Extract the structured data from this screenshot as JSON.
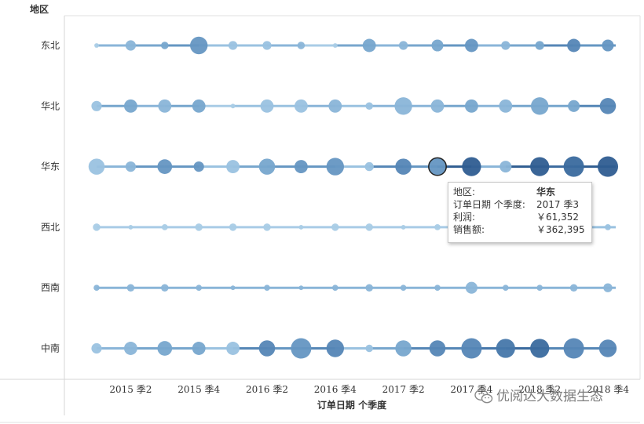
{
  "chart_data": {
    "type": "scatter",
    "title": "",
    "row_header": "地区",
    "xlabel": "订单日期 个季度",
    "x_ticks": [
      "2015 季2",
      "2015 季4",
      "2016 季2",
      "2016 季4",
      "2017 季2",
      "2017 季4",
      "2018 季2",
      "2018 季4"
    ],
    "quarters": [
      "2015 季1",
      "2015 季2",
      "2015 季3",
      "2015 季4",
      "2016 季1",
      "2016 季2",
      "2016 季3",
      "2016 季4",
      "2017 季1",
      "2017 季2",
      "2017 季3",
      "2017 季4",
      "2018 季1",
      "2018 季2",
      "2018 季3",
      "2018 季4"
    ],
    "size_measure": "销售额",
    "color_measure": "利润",
    "series": [
      {
        "name": "东北",
        "size": [
          1,
          5,
          3,
          10,
          4,
          4,
          3,
          1,
          7,
          4,
          6,
          7,
          4,
          4,
          7,
          6
        ],
        "color": [
          1,
          3,
          4,
          5,
          2,
          2,
          3,
          1,
          4,
          3,
          4,
          5,
          3,
          4,
          6,
          5
        ]
      },
      {
        "name": "华北",
        "size": [
          5,
          7,
          7,
          7,
          1,
          7,
          7,
          7,
          3,
          10,
          7,
          7,
          7,
          10,
          6,
          9
        ],
        "color": [
          2,
          4,
          3,
          4,
          1,
          2,
          2,
          3,
          2,
          3,
          3,
          4,
          3,
          4,
          4,
          6
        ]
      },
      {
        "name": "华东",
        "size": [
          9,
          5,
          8,
          5,
          7,
          9,
          7,
          10,
          4,
          9,
          10,
          11,
          6,
          11,
          12,
          12
        ],
        "color": [
          2,
          3,
          5,
          5,
          2,
          4,
          5,
          5,
          2,
          6,
          5,
          9,
          3,
          9,
          8,
          9
        ]
      },
      {
        "name": "西北",
        "size": [
          3,
          1,
          2,
          3,
          3,
          3,
          1,
          3,
          3,
          1,
          2,
          1,
          1,
          1,
          1,
          2
        ],
        "color": [
          1,
          1,
          1,
          1,
          1,
          1,
          1,
          1,
          1,
          1,
          1,
          1,
          1,
          1,
          1,
          2
        ]
      },
      {
        "name": "西南",
        "size": [
          2,
          3,
          3,
          2,
          1,
          2,
          1,
          2,
          3,
          2,
          2,
          6,
          2,
          2,
          3,
          4
        ],
        "color": [
          3,
          3,
          3,
          3,
          3,
          3,
          3,
          3,
          3,
          3,
          3,
          3,
          3,
          3,
          3,
          3
        ]
      },
      {
        "name": "中南",
        "size": [
          5,
          7,
          8,
          7,
          7,
          9,
          12,
          10,
          3,
          9,
          9,
          12,
          11,
          11,
          12,
          10
        ],
        "color": [
          2,
          3,
          4,
          4,
          2,
          6,
          5,
          6,
          2,
          4,
          6,
          6,
          7,
          8,
          6,
          6
        ]
      }
    ],
    "highlighted_point": {
      "region": "华东",
      "quarter": "2017 季3"
    }
  },
  "tooltip": {
    "region_label": "地区:",
    "region_value": "华东",
    "date_label": "订单日期 个季度:",
    "date_value": "2017 季3",
    "profit_label": "利润:",
    "profit_value": "￥61,352",
    "sales_label": "销售额:",
    "sales_value": "￥362,395"
  },
  "watermark": {
    "text": "优阅达大数据生态",
    "icon": "wechat-icon"
  },
  "colors": {
    "palette": [
      "#a9cce6",
      "#9ac2e0",
      "#8ab5d8",
      "#77a6cd",
      "#6596c2",
      "#5586b6",
      "#4677aa",
      "#3a6a9e",
      "#2f5d91",
      "#25507f",
      "#1f4774",
      "#1b3f68"
    ]
  }
}
